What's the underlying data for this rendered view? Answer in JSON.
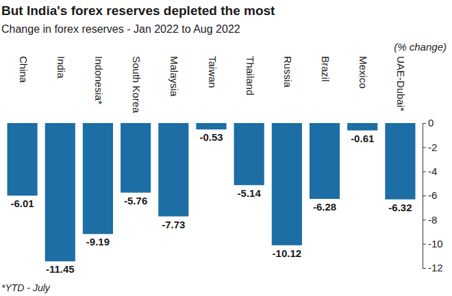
{
  "chart_data": {
    "type": "bar",
    "title": "But India's forex reserves depleted the most",
    "subtitle": "Change in forex reserves - Jan 2022 to Aug 2022",
    "ylabel": "(% change)",
    "annotations": [
      "*YTD - July"
    ],
    "categories": [
      "China",
      "India",
      "Indonesia*",
      "South Korea",
      "Malaysia",
      "Taiwan",
      "Thailand",
      "Russia",
      "Brazil",
      "Mexico",
      "UAE-Dubai*"
    ],
    "values": [
      -6.01,
      -11.45,
      -9.19,
      -5.76,
      -7.73,
      -0.53,
      -5.14,
      -10.12,
      -6.28,
      -0.61,
      -6.32
    ],
    "color": "#1c6ea4",
    "ylim": [
      -12,
      0
    ],
    "yticks": [
      0,
      -2,
      -4,
      -6,
      -8,
      -10,
      -12
    ],
    "grid": false,
    "data_labels": true
  }
}
